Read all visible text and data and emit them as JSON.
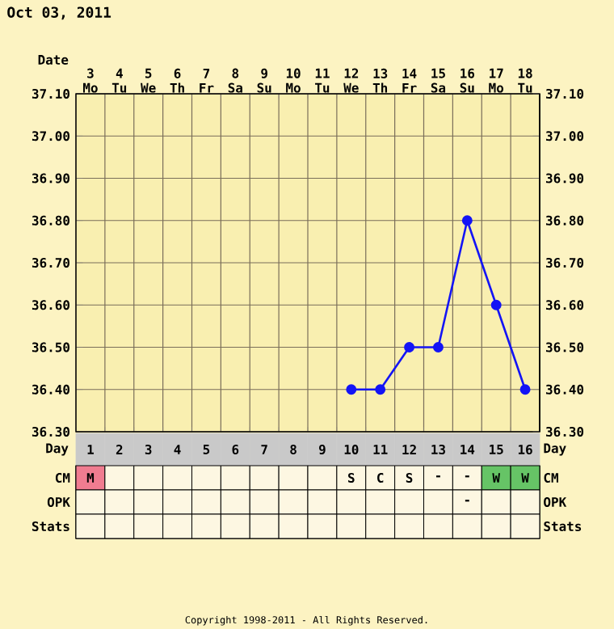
{
  "chart_data": [
    {
      "type": "line",
      "title": "Oct 03, 2011",
      "xlabel": "Date",
      "categories": [
        "3 Mo",
        "4 Tu",
        "5 We",
        "6 Th",
        "7 Fr",
        "8 Sa",
        "9 Su",
        "10 Mo",
        "11 Tu",
        "12 We",
        "13 Th",
        "14 Fr",
        "15 Sa",
        "16 Su",
        "17 Mo",
        "18 Tu"
      ],
      "series": [
        {
          "color": "#1414f5",
          "values": [
            null,
            null,
            null,
            null,
            null,
            null,
            null,
            null,
            null,
            36.4,
            36.4,
            36.5,
            36.5,
            36.8,
            36.6,
            36.4
          ]
        }
      ],
      "ylim": [
        36.3,
        37.1
      ],
      "yticks": [
        {
          "value": 36.3,
          "label": "36.30"
        },
        {
          "value": 36.4,
          "label": "36.40"
        },
        {
          "value": 36.5,
          "label": "36.50"
        },
        {
          "value": 36.6,
          "label": "36.60"
        },
        {
          "value": 36.7,
          "label": "36.70"
        },
        {
          "value": 36.8,
          "label": "36.80"
        },
        {
          "value": 36.9,
          "label": "36.90"
        },
        {
          "value": 37.0,
          "label": "37.00"
        },
        {
          "value": 37.1,
          "label": "37.10"
        }
      ],
      "y2lim": [
        36.3,
        37.1
      ],
      "y2ticks": [
        {
          "value": 36.3,
          "label": "36.30"
        },
        {
          "value": 36.4,
          "label": "36.40"
        },
        {
          "value": 36.5,
          "label": "36.50"
        },
        {
          "value": 36.6,
          "label": "36.60"
        },
        {
          "value": 36.7,
          "label": "36.70"
        },
        {
          "value": 36.8,
          "label": "36.80"
        },
        {
          "value": 36.9,
          "label": "36.90"
        },
        {
          "value": 37.0,
          "label": "37.00"
        },
        {
          "value": 37.1,
          "label": "37.10"
        }
      ],
      "grid": true,
      "marker": "circle",
      "line_style": "solid",
      "annotations": [
        "Copyright 1998-2011 - All Rights Reserved."
      ]
    },
    {
      "type": "heatmap",
      "xlabel": "Day",
      "categories": [
        "1",
        "2",
        "3",
        "4",
        "5",
        "6",
        "7",
        "8",
        "9",
        "10",
        "11",
        "12",
        "13",
        "14",
        "15",
        "16"
      ],
      "y_categories": [
        "CM",
        "OPK",
        "Stats"
      ],
      "y2_categories": [
        "CM",
        "OPK",
        "Stats"
      ],
      "cells": [
        [
          null,
          null,
          null,
          null,
          null,
          null,
          null,
          null,
          null,
          null,
          null,
          null,
          null,
          null,
          null,
          null
        ],
        [
          null,
          null,
          null,
          null,
          null,
          null,
          null,
          null,
          null,
          null,
          null,
          null,
          null,
          null,
          null,
          null
        ],
        [
          null,
          null,
          null,
          null,
          null,
          null,
          null,
          null,
          null,
          null,
          null,
          null,
          null,
          null,
          null,
          null
        ]
      ],
      "cell_labels": [
        [
          "M",
          null,
          null,
          null,
          null,
          null,
          null,
          null,
          null,
          "S",
          "C",
          "S",
          "-",
          "-",
          "W",
          "W"
        ],
        [
          null,
          null,
          null,
          null,
          null,
          null,
          null,
          null,
          null,
          null,
          null,
          null,
          null,
          "-",
          null,
          null
        ],
        [
          null,
          null,
          null,
          null,
          null,
          null,
          null,
          null,
          null,
          null,
          null,
          null,
          null,
          null,
          null,
          null
        ]
      ],
      "colors": [
        [
          "#f07c90",
          null,
          null,
          null,
          null,
          null,
          null,
          null,
          null,
          null,
          null,
          null,
          null,
          null,
          "#66c466",
          "#66c466"
        ],
        [
          null,
          null,
          null,
          null,
          null,
          null,
          null,
          null,
          null,
          null,
          null,
          null,
          null,
          null,
          null,
          null
        ],
        [
          null,
          null,
          null,
          null,
          null,
          null,
          null,
          null,
          null,
          null,
          null,
          null,
          null,
          null,
          null,
          null
        ]
      ]
    }
  ]
}
